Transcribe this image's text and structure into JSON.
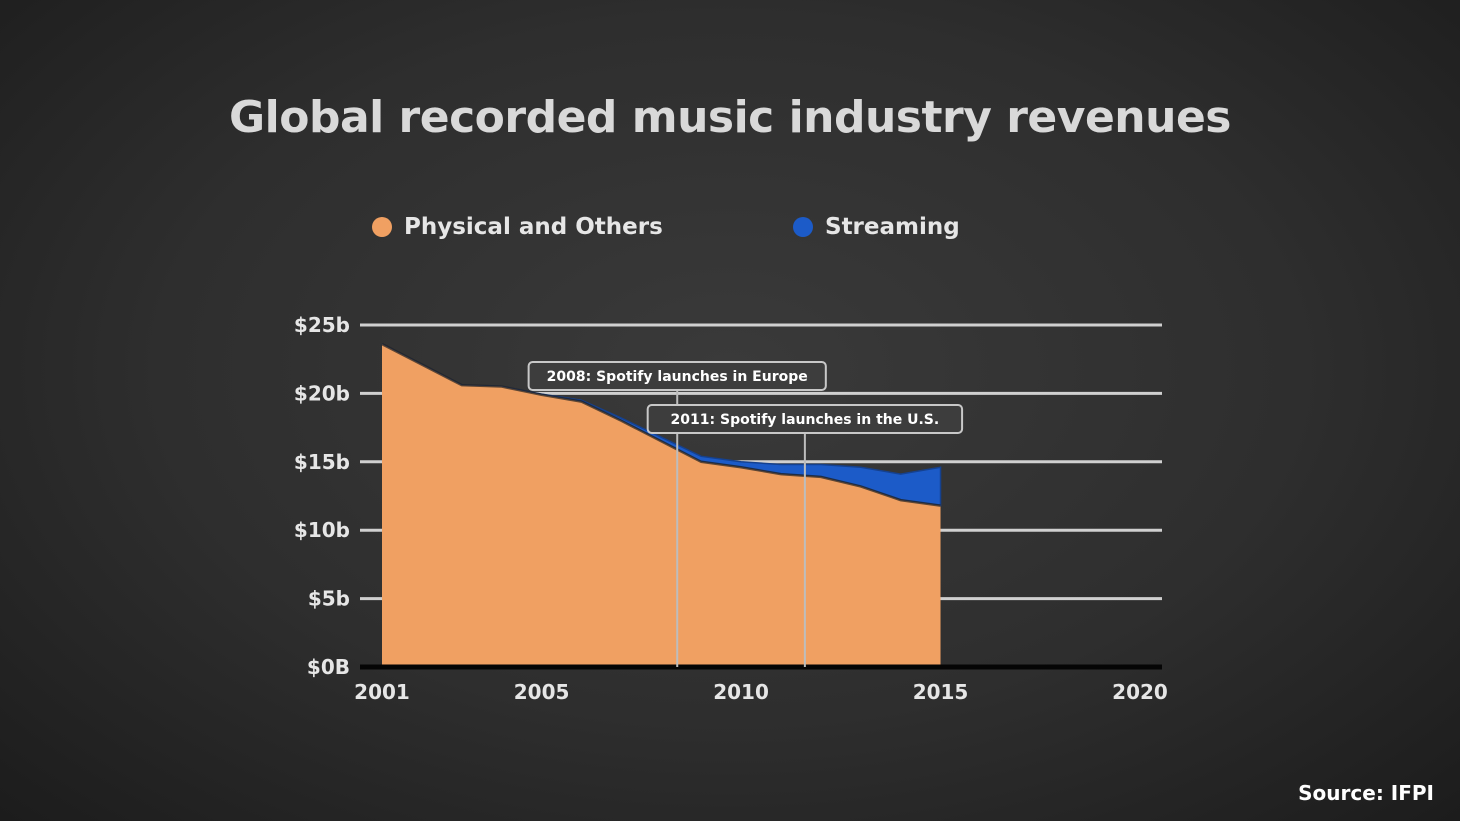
{
  "chart_data": {
    "type": "area",
    "title": "Global recorded music industry revenues",
    "x": [
      2001,
      2002,
      2003,
      2004,
      2005,
      2006,
      2007,
      2008,
      2009,
      2010,
      2011,
      2012,
      2013,
      2014,
      2015
    ],
    "series": [
      {
        "name": "Physical and Others",
        "color": "#f0a062",
        "values": [
          23.6,
          22.1,
          20.6,
          20.5,
          19.9,
          19.4,
          18.0,
          16.5,
          15.0,
          14.6,
          14.1,
          13.9,
          13.2,
          12.2,
          11.8
        ]
      },
      {
        "name": "Streaming",
        "color": "#1c5bc8",
        "values": [
          0,
          0,
          0,
          0,
          0.05,
          0.1,
          0.2,
          0.3,
          0.4,
          0.4,
          0.7,
          0.9,
          1.4,
          1.9,
          2.8
        ]
      }
    ],
    "xlim": [
      2001,
      2020
    ],
    "ylim": [
      0,
      25
    ],
    "x_ticks": [
      2001,
      2005,
      2010,
      2015,
      2020
    ],
    "y_ticks": [
      {
        "value": 0,
        "label": "$0B"
      },
      {
        "value": 5,
        "label": "$5b"
      },
      {
        "value": 10,
        "label": "$10b"
      },
      {
        "value": 15,
        "label": "$15b"
      },
      {
        "value": 20,
        "label": "$20b"
      },
      {
        "value": 25,
        "label": "$25b"
      }
    ],
    "annotations": [
      {
        "x": 2008.4,
        "label": "2008: Spotify launches in Europe"
      },
      {
        "x": 2011.6,
        "label": "2011: Spotify launches in the U.S."
      }
    ],
    "grid": true,
    "legend": "top"
  },
  "source": "Source: IFPI"
}
